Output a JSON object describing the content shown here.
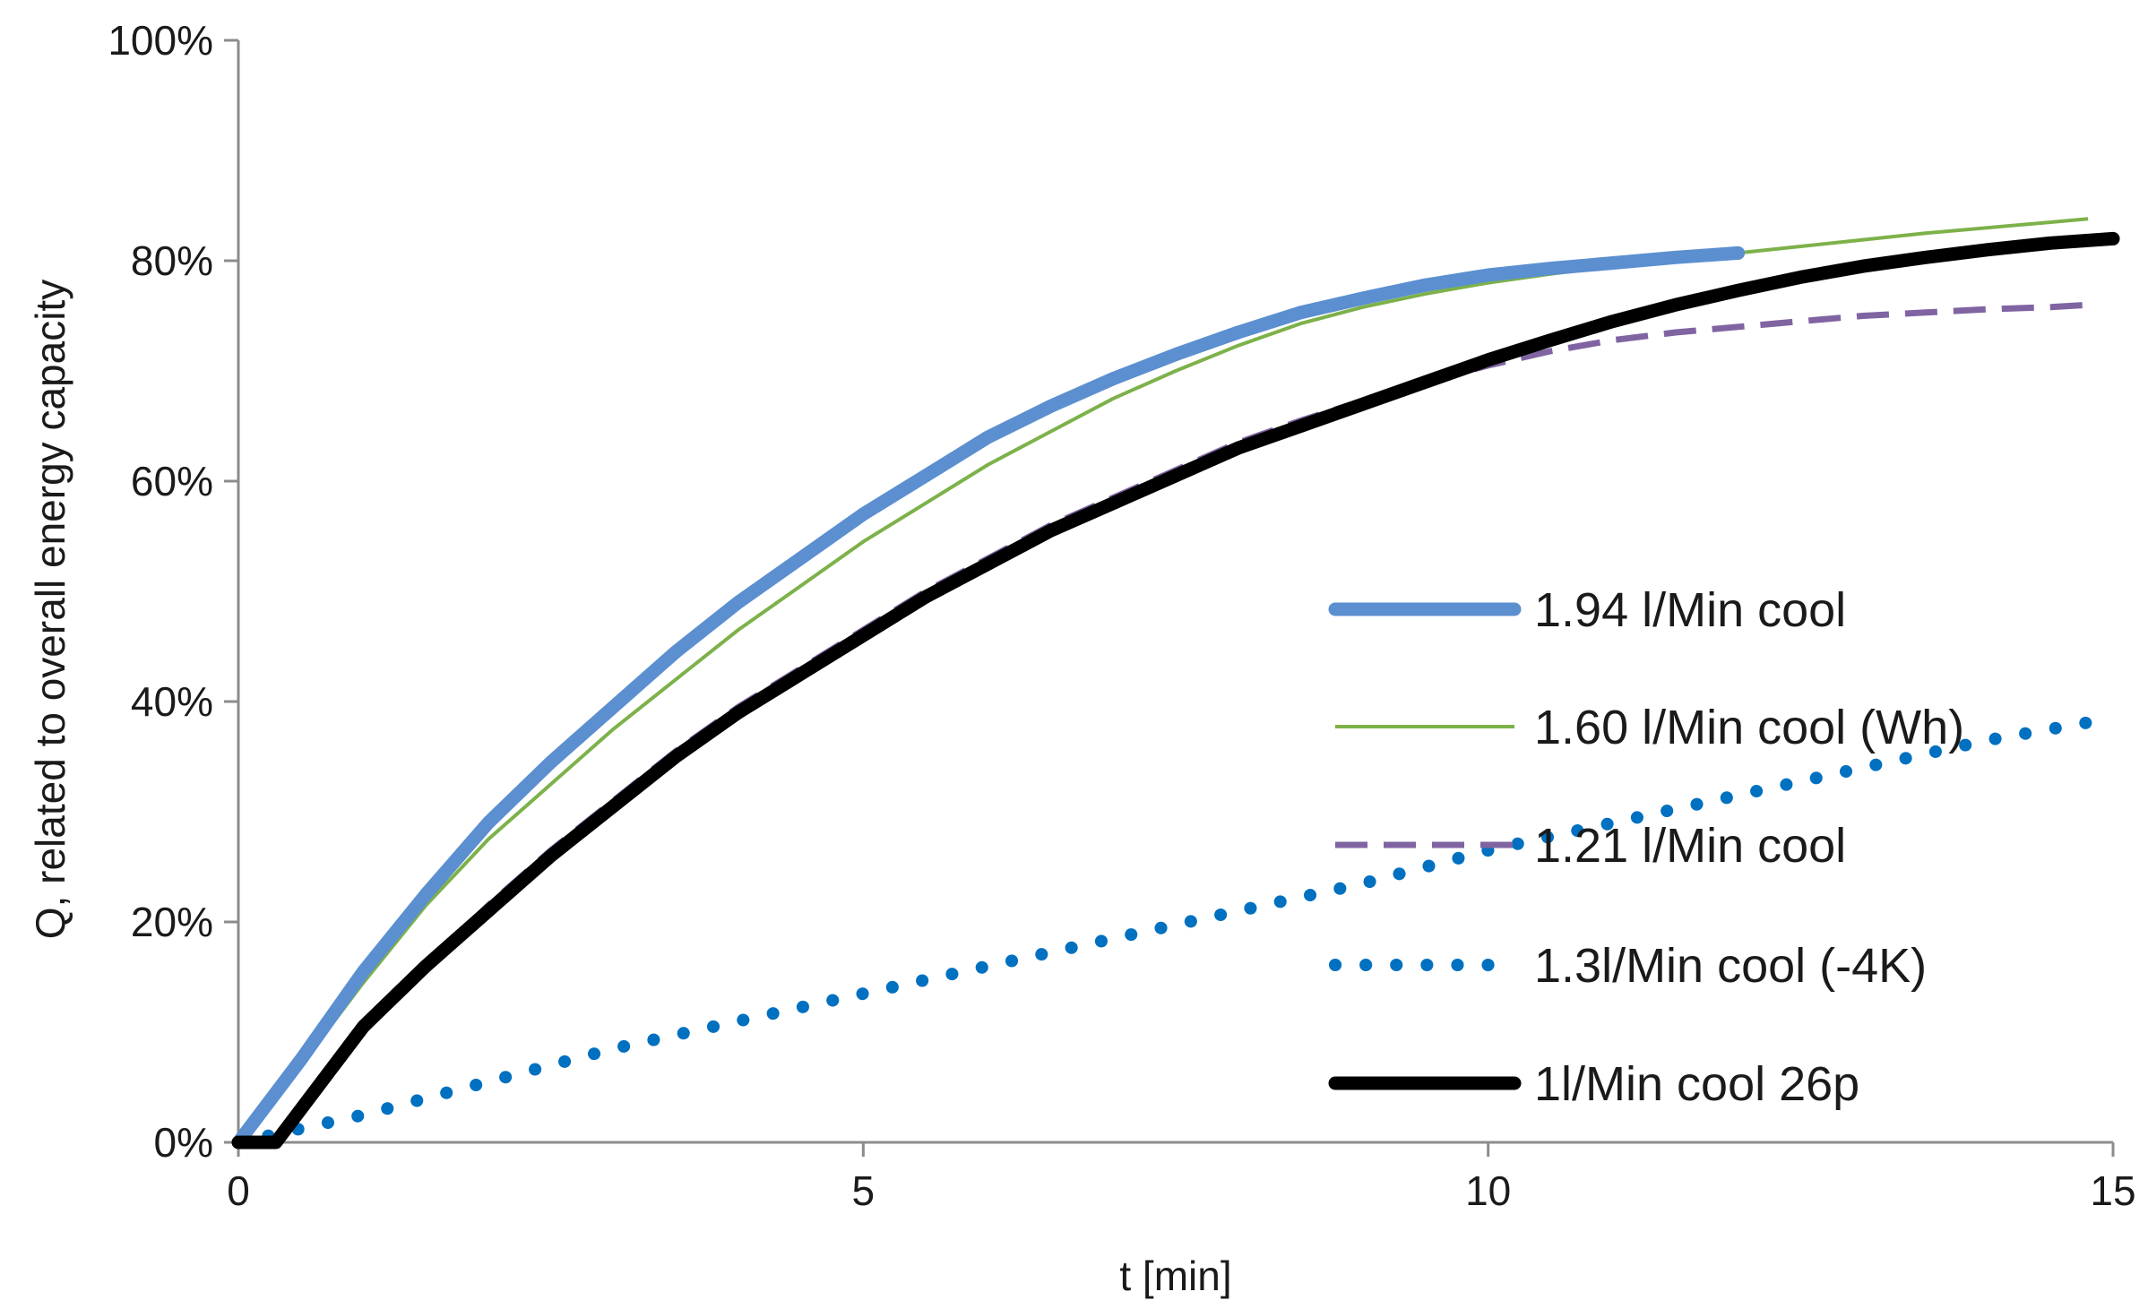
{
  "chart_data": {
    "type": "line",
    "title": "",
    "xlabel": "t [min]",
    "ylabel": "Q, related to overall energy capacity",
    "xlim": [
      0,
      15
    ],
    "ylim": [
      0,
      100
    ],
    "x_ticks": [
      0,
      5,
      10,
      15
    ],
    "x_tick_labels": [
      "0",
      "5",
      "10",
      "15"
    ],
    "y_ticks": [
      0,
      20,
      40,
      60,
      80,
      100
    ],
    "y_tick_labels": [
      "0%",
      "20%",
      "40%",
      "60%",
      "80%",
      "100%"
    ],
    "grid": false,
    "legend_position": "right",
    "series": [
      {
        "name": "1.94 l/Min cool",
        "color": "#5b8fd0",
        "style": "solid-thick",
        "x": [
          0,
          0.5,
          1,
          1.5,
          2,
          2.5,
          3,
          3.5,
          4,
          4.5,
          5,
          5.5,
          6,
          6.5,
          7,
          7.5,
          8,
          8.5,
          9,
          9.5,
          10,
          10.5,
          11,
          11.5,
          12
        ],
        "y": [
          0,
          7.5,
          15.5,
          22.5,
          29,
          34.5,
          39.5,
          44.5,
          49,
          53,
          57,
          60.5,
          64,
          66.8,
          69.3,
          71.5,
          73.5,
          75.3,
          76.6,
          77.8,
          78.7,
          79.3,
          79.8,
          80.3,
          80.7
        ]
      },
      {
        "name": "1.60 l/Min cool (Wh)",
        "color": "#7db14a",
        "style": "solid-thin",
        "x": [
          0,
          0.5,
          1,
          1.5,
          2,
          2.5,
          3,
          3.5,
          4,
          4.5,
          5,
          5.5,
          6,
          6.5,
          7,
          7.5,
          8,
          8.5,
          9,
          9.5,
          10,
          10.5,
          11,
          11.5,
          12,
          12.5,
          13,
          13.5,
          14,
          14.5,
          14.8
        ],
        "y": [
          0,
          7,
          14.5,
          21.5,
          27.5,
          32.5,
          37.5,
          42,
          46.5,
          50.5,
          54.5,
          58,
          61.5,
          64.5,
          67.5,
          70,
          72.3,
          74.3,
          75.8,
          77,
          78,
          78.8,
          79.5,
          80.1,
          80.7,
          81.3,
          81.9,
          82.5,
          83,
          83.5,
          83.8
        ]
      },
      {
        "name": "1.21 l/Min cool",
        "color": "#8064a2",
        "style": "dashed",
        "x": [
          0.3,
          0.5,
          1,
          1.5,
          2,
          2.5,
          3,
          3.5,
          4,
          4.5,
          5,
          5.5,
          6,
          6.5,
          7,
          7.5,
          8,
          8.5,
          9,
          9.5,
          10,
          10.5,
          11,
          11.5,
          12,
          12.5,
          13,
          13.5,
          14,
          14.5,
          14.8
        ],
        "y": [
          0,
          3,
          10,
          16,
          21.5,
          26.5,
          31,
          35.5,
          39.5,
          43,
          46.5,
          50,
          53,
          56,
          58.5,
          61,
          63.5,
          65.5,
          67.3,
          69,
          70.5,
          71.8,
          72.8,
          73.5,
          74,
          74.5,
          75,
          75.3,
          75.6,
          75.8,
          76
        ]
      },
      {
        "name": "1.3l/Min cool (-4K)",
        "color": "#0070c0",
        "style": "dotted",
        "x": [
          0,
          1,
          2,
          3,
          4,
          5,
          6,
          7,
          8,
          9,
          10,
          11,
          12,
          13,
          14,
          15
        ],
        "y": [
          0,
          2.5,
          5.5,
          8.5,
          11,
          13.5,
          16,
          18.5,
          21,
          23.5,
          26.5,
          29,
          31.5,
          34,
          36.5,
          38.5
        ]
      },
      {
        "name": "1l/Min cool 26p",
        "color": "#000000",
        "style": "solid-thick",
        "x": [
          0,
          0.3,
          0.5,
          1,
          1.5,
          2,
          2.5,
          3,
          3.5,
          4,
          4.5,
          5,
          5.5,
          6,
          6.5,
          7,
          7.5,
          8,
          8.5,
          9,
          9.5,
          10,
          10.5,
          11,
          11.5,
          12,
          12.5,
          13,
          13.5,
          14,
          14.5,
          15
        ],
        "y": [
          0,
          0,
          3,
          10.5,
          16,
          21,
          26,
          30.5,
          35,
          39,
          42.5,
          46,
          49.5,
          52.5,
          55.5,
          58,
          60.5,
          63,
          65,
          67,
          69,
          71,
          72.8,
          74.5,
          76,
          77.3,
          78.5,
          79.5,
          80.3,
          81,
          81.6,
          82
        ]
      }
    ]
  }
}
